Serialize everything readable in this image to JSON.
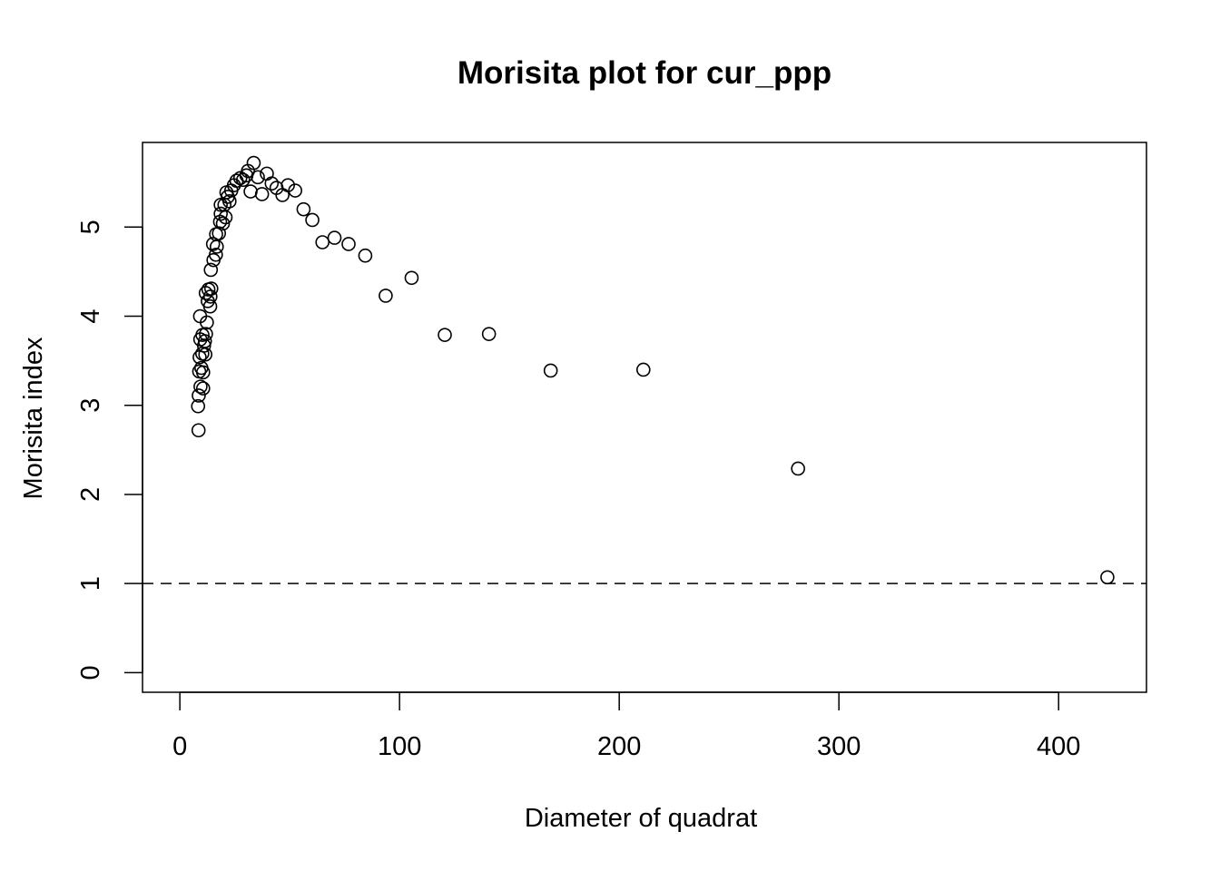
{
  "chart_data": {
    "type": "scatter",
    "title": "Morisita plot for cur_ppp",
    "xlabel": "Diameter of quadrat",
    "ylabel": "Morisita index",
    "xlim": [
      -17,
      440
    ],
    "ylim": [
      -0.22,
      5.95
    ],
    "xticks": [
      0,
      100,
      200,
      300,
      400
    ],
    "yticks": [
      0,
      1,
      2,
      3,
      4,
      5
    ],
    "reference_line": {
      "y": 1,
      "style": "dashed"
    },
    "grid": false,
    "legend": "none",
    "colors": {
      "points": "#000000",
      "background": "#ffffff"
    },
    "points": [
      {
        "x": 8.5,
        "y": 2.72
      },
      {
        "x": 8.3,
        "y": 2.99
      },
      {
        "x": 8.6,
        "y": 3.11
      },
      {
        "x": 9.4,
        "y": 3.21
      },
      {
        "x": 10.6,
        "y": 3.19
      },
      {
        "x": 8.8,
        "y": 3.38
      },
      {
        "x": 9.8,
        "y": 3.42
      },
      {
        "x": 10.6,
        "y": 3.37
      },
      {
        "x": 9.0,
        "y": 3.54
      },
      {
        "x": 10.2,
        "y": 3.58
      },
      {
        "x": 11.0,
        "y": 3.67
      },
      {
        "x": 11.6,
        "y": 3.57
      },
      {
        "x": 9.3,
        "y": 3.74
      },
      {
        "x": 10.3,
        "y": 3.79
      },
      {
        "x": 11.4,
        "y": 3.72
      },
      {
        "x": 11.9,
        "y": 3.8
      },
      {
        "x": 12.3,
        "y": 3.93
      },
      {
        "x": 9.2,
        "y": 4.0
      },
      {
        "x": 12.7,
        "y": 4.17
      },
      {
        "x": 11.8,
        "y": 4.26
      },
      {
        "x": 13.0,
        "y": 4.3
      },
      {
        "x": 13.8,
        "y": 4.11
      },
      {
        "x": 13.9,
        "y": 4.22
      },
      {
        "x": 14.3,
        "y": 4.31
      },
      {
        "x": 14.1,
        "y": 4.52
      },
      {
        "x": 15.3,
        "y": 4.63
      },
      {
        "x": 15.1,
        "y": 4.81
      },
      {
        "x": 16.4,
        "y": 4.69
      },
      {
        "x": 16.8,
        "y": 4.78
      },
      {
        "x": 16.5,
        "y": 4.92
      },
      {
        "x": 17.8,
        "y": 4.93
      },
      {
        "x": 18.3,
        "y": 5.06
      },
      {
        "x": 19.6,
        "y": 5.04
      },
      {
        "x": 20.8,
        "y": 5.11
      },
      {
        "x": 18.6,
        "y": 5.15
      },
      {
        "x": 18.6,
        "y": 5.25
      },
      {
        "x": 20.3,
        "y": 5.25
      },
      {
        "x": 22.6,
        "y": 5.29
      },
      {
        "x": 21.8,
        "y": 5.34
      },
      {
        "x": 21.2,
        "y": 5.39
      },
      {
        "x": 23.4,
        "y": 5.41
      },
      {
        "x": 24.6,
        "y": 5.47
      },
      {
        "x": 25.8,
        "y": 5.52
      },
      {
        "x": 27.5,
        "y": 5.55
      },
      {
        "x": 28.8,
        "y": 5.53
      },
      {
        "x": 30.3,
        "y": 5.58
      },
      {
        "x": 31.0,
        "y": 5.63
      },
      {
        "x": 32.2,
        "y": 5.4
      },
      {
        "x": 33.6,
        "y": 5.72
      },
      {
        "x": 35.5,
        "y": 5.56
      },
      {
        "x": 37.4,
        "y": 5.37
      },
      {
        "x": 39.6,
        "y": 5.6
      },
      {
        "x": 41.8,
        "y": 5.49
      },
      {
        "x": 44.0,
        "y": 5.44
      },
      {
        "x": 46.7,
        "y": 5.36
      },
      {
        "x": 49.2,
        "y": 5.47
      },
      {
        "x": 52.5,
        "y": 5.41
      },
      {
        "x": 56.3,
        "y": 5.2
      },
      {
        "x": 60.3,
        "y": 5.08
      },
      {
        "x": 64.9,
        "y": 4.83
      },
      {
        "x": 70.4,
        "y": 4.88
      },
      {
        "x": 76.8,
        "y": 4.81
      },
      {
        "x": 84.4,
        "y": 4.68
      },
      {
        "x": 93.7,
        "y": 4.23
      },
      {
        "x": 105.5,
        "y": 4.43
      },
      {
        "x": 120.6,
        "y": 3.79
      },
      {
        "x": 140.7,
        "y": 3.8
      },
      {
        "x": 168.8,
        "y": 3.39
      },
      {
        "x": 211.0,
        "y": 3.4
      },
      {
        "x": 281.4,
        "y": 2.29
      },
      {
        "x": 422.2,
        "y": 1.07
      }
    ]
  }
}
